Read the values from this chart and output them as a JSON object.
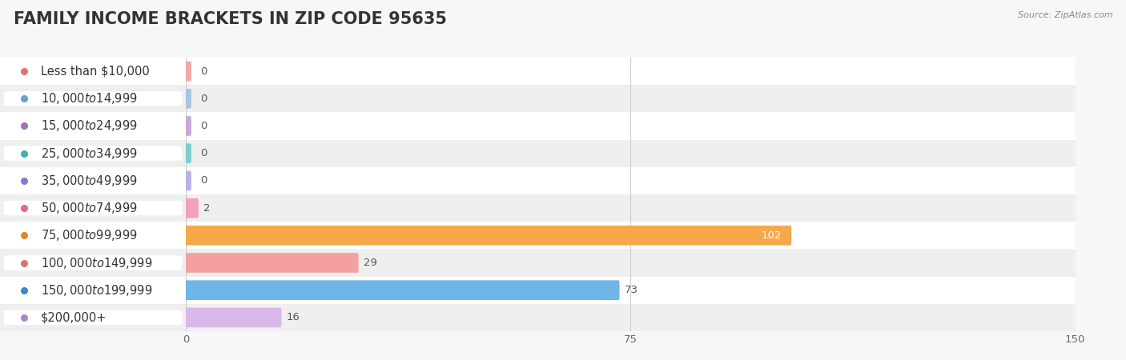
{
  "title": "FAMILY INCOME BRACKETS IN ZIP CODE 95635",
  "source": "Source: ZipAtlas.com",
  "categories": [
    "Less than $10,000",
    "$10,000 to $14,999",
    "$15,000 to $24,999",
    "$25,000 to $34,999",
    "$35,000 to $49,999",
    "$50,000 to $74,999",
    "$75,000 to $99,999",
    "$100,000 to $149,999",
    "$150,000 to $199,999",
    "$200,000+"
  ],
  "values": [
    0,
    0,
    0,
    0,
    0,
    2,
    102,
    29,
    73,
    16
  ],
  "bar_colors": [
    "#F4A7A3",
    "#A8C4E0",
    "#C8A8D8",
    "#7ECECA",
    "#B8B0E8",
    "#F4A0B8",
    "#F5A84A",
    "#F4A0A0",
    "#6EB5E8",
    "#D8B8E8"
  ],
  "dot_colors": [
    "#E87070",
    "#6A9FD0",
    "#A070B8",
    "#40B0B0",
    "#8878D0",
    "#E06888",
    "#E08820",
    "#E07070",
    "#3A85C8",
    "#A888C8"
  ],
  "xlim": [
    0,
    150
  ],
  "xticks": [
    0,
    75,
    150
  ],
  "background_color": "#f7f7f7",
  "row_colors": [
    "#ffffff",
    "#efefef"
  ],
  "title_fontsize": 15,
  "label_fontsize": 10.5,
  "value_fontsize": 9.5
}
